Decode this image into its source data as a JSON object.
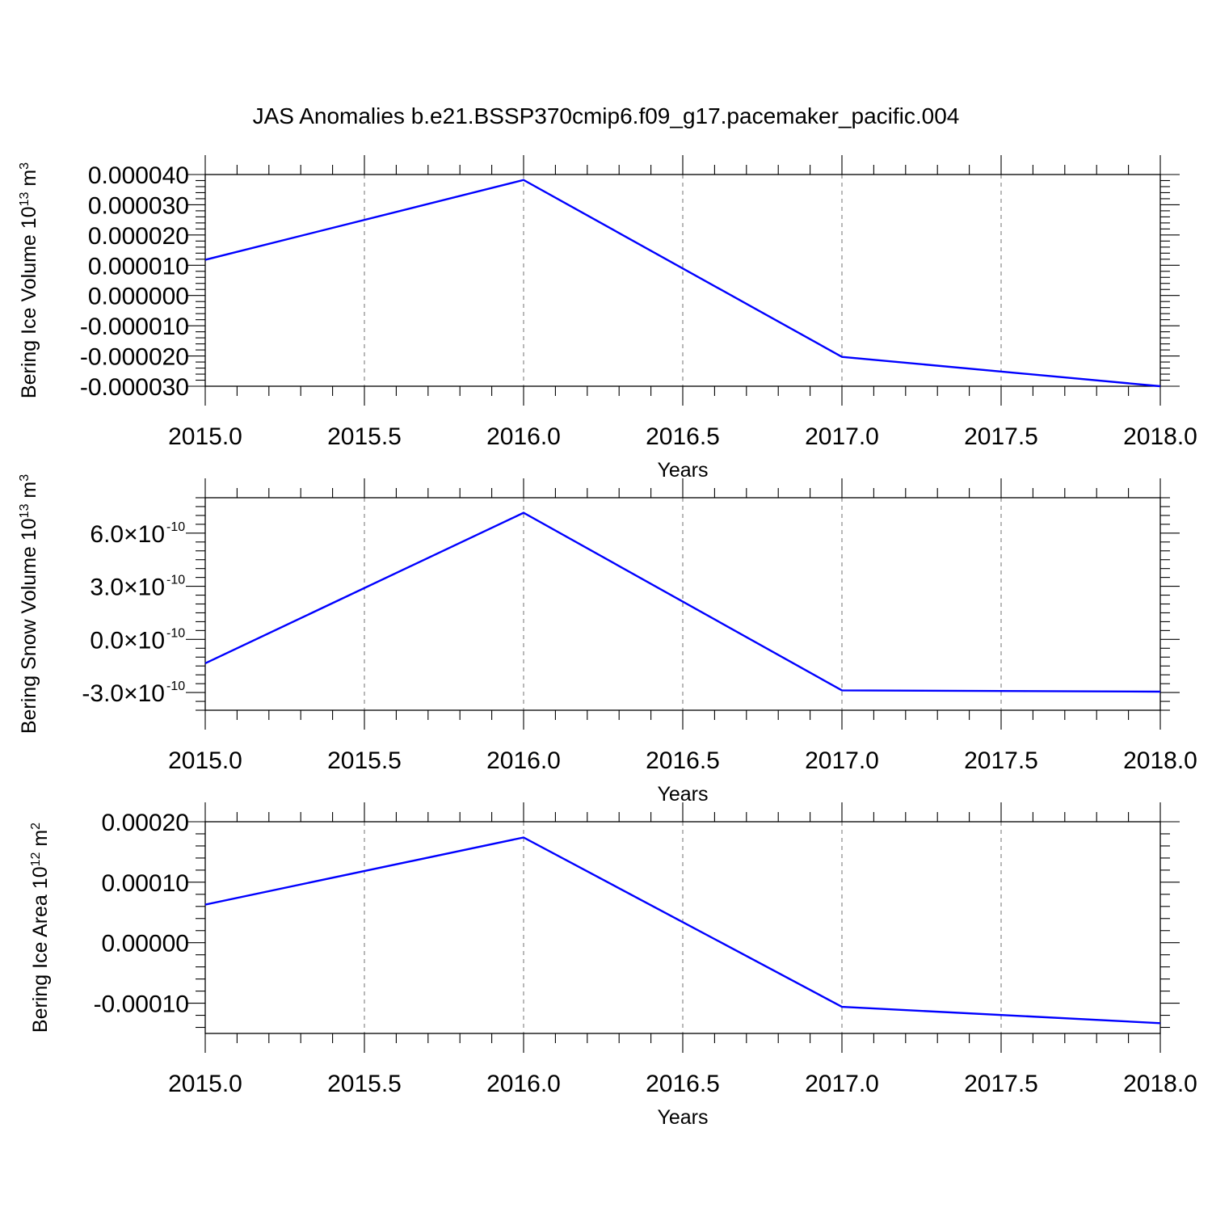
{
  "title": "JAS Anomalies b.e21.BSSP370cmip6.f09_g17.pacemaker_pacific.004",
  "chart_data": [
    {
      "type": "line",
      "ylabel_main": "Bering Ice Volume 10",
      "ylabel_exp": "13",
      "ylabel_unit": " m",
      "ylabel_unit_exp": "3",
      "xlabel": "Years",
      "xlim": [
        2015.0,
        2018.0
      ],
      "ylim": [
        -3e-05,
        4e-05
      ],
      "x_ticks": [
        2015.0,
        2015.5,
        2016.0,
        2016.5,
        2017.0,
        2017.5,
        2018.0
      ],
      "x_tick_labels": [
        "2015.0",
        "2015.5",
        "2016.0",
        "2016.5",
        "2017.0",
        "2017.5",
        "2018.0"
      ],
      "y_ticks": [
        4e-05,
        3e-05,
        2e-05,
        1e-05,
        0.0,
        -1e-05,
        -2e-05,
        -3e-05
      ],
      "y_tick_labels": [
        "0.000040",
        "0.000030",
        "0.000020",
        "0.000010",
        "0.000000",
        "-0.000010",
        "-0.000020",
        "-0.000030"
      ],
      "y_minor_per_major": 5,
      "series": [
        {
          "x": [
            2015,
            2016,
            2017,
            2018
          ],
          "values": [
            1.18e-05,
            3.82e-05,
            -2.03e-05,
            -3e-05
          ],
          "color": "#0000ff"
        }
      ]
    },
    {
      "type": "line",
      "ylabel_main": "Bering Snow Volume 10",
      "ylabel_exp": "13",
      "ylabel_unit": " m",
      "ylabel_unit_exp": "3",
      "xlabel": "Years",
      "xlim": [
        2015.0,
        2018.0
      ],
      "ylim": [
        -4e-10,
        8e-10
      ],
      "x_ticks": [
        2015.0,
        2015.5,
        2016.0,
        2016.5,
        2017.0,
        2017.5,
        2018.0
      ],
      "x_tick_labels": [
        "2015.0",
        "2015.5",
        "2016.0",
        "2016.5",
        "2017.0",
        "2017.5",
        "2018.0"
      ],
      "y_ticks": [
        6e-10,
        3e-10,
        0.0,
        -3e-10
      ],
      "y_tick_labels": [
        {
          "mant": "6.0",
          "exp": "-10"
        },
        {
          "mant": "3.0",
          "exp": "-10"
        },
        {
          "mant": "0.0",
          "exp": "-10"
        },
        {
          "mant": "-3.0",
          "exp": "-10"
        }
      ],
      "y_minor_per_major": 6,
      "series": [
        {
          "x": [
            2015,
            2016,
            2017,
            2018
          ],
          "values": [
            -1.35e-10,
            7.15e-10,
            -2.88e-10,
            -2.95e-10
          ],
          "color": "#0000ff"
        }
      ]
    },
    {
      "type": "line",
      "ylabel_main": "Bering Ice Area 10",
      "ylabel_exp": "12",
      "ylabel_unit": " m",
      "ylabel_unit_exp": "2",
      "xlabel": "Years",
      "xlim": [
        2015.0,
        2018.0
      ],
      "ylim": [
        -0.00015,
        0.0002
      ],
      "x_ticks": [
        2015.0,
        2015.5,
        2016.0,
        2016.5,
        2017.0,
        2017.5,
        2018.0
      ],
      "x_tick_labels": [
        "2015.0",
        "2015.5",
        "2016.0",
        "2016.5",
        "2017.0",
        "2017.5",
        "2018.0"
      ],
      "y_ticks": [
        0.0002,
        0.0001,
        0.0,
        -0.0001
      ],
      "y_tick_labels": [
        "0.00020",
        "0.00010",
        "0.00000",
        "-0.00010"
      ],
      "y_minor_per_major": 5,
      "series": [
        {
          "x": [
            2015,
            2016,
            2017,
            2018
          ],
          "values": [
            6.3e-05,
            0.000174,
            -0.000106,
            -0.000133
          ],
          "color": "#0000ff"
        }
      ]
    }
  ]
}
